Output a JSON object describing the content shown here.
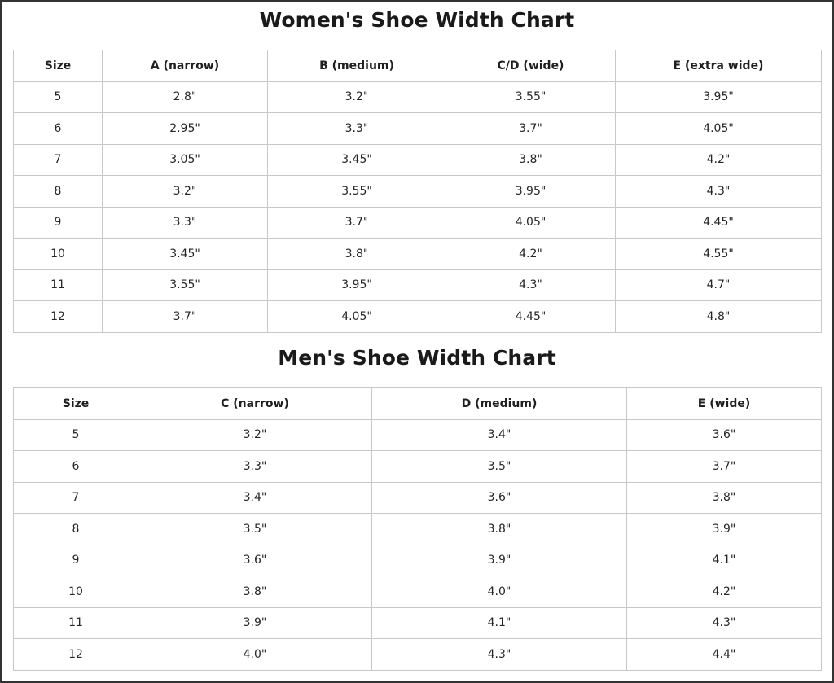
{
  "women": {
    "title": "Women's Shoe Width Chart",
    "headers": [
      "Size",
      "A (narrow)",
      "B (medium)",
      "C/D (wide)",
      "E (extra wide)"
    ],
    "rows": [
      [
        "5",
        "2.8\"",
        "3.2\"",
        "3.55\"",
        "3.95\""
      ],
      [
        "6",
        "2.95\"",
        "3.3\"",
        "3.7\"",
        "4.05\""
      ],
      [
        "7",
        "3.05\"",
        "3.45\"",
        "3.8\"",
        "4.2\""
      ],
      [
        "8",
        "3.2\"",
        "3.55\"",
        "3.95\"",
        "4.3\""
      ],
      [
        "9",
        "3.3\"",
        "3.7\"",
        "4.05\"",
        "4.45\""
      ],
      [
        "10",
        "3.45\"",
        "3.8\"",
        "4.2\"",
        "4.55\""
      ],
      [
        "11",
        "3.55\"",
        "3.95\"",
        "4.3\"",
        "4.7\""
      ],
      [
        "12",
        "3.7\"",
        "4.05\"",
        "4.45\"",
        "4.8\""
      ]
    ]
  },
  "men": {
    "title": "Men's Shoe Width Chart",
    "headers": [
      "Size",
      "C (narrow)",
      "D (medium)",
      "E (wide)"
    ],
    "rows": [
      [
        "5",
        "3.2\"",
        "3.4\"",
        "3.6\""
      ],
      [
        "6",
        "3.3\"",
        "3.5\"",
        "3.7\""
      ],
      [
        "7",
        "3.4\"",
        "3.6\"",
        "3.8\""
      ],
      [
        "8",
        "3.5\"",
        "3.8\"",
        "3.9\""
      ],
      [
        "9",
        "3.6\"",
        "3.9\"",
        "4.1\""
      ],
      [
        "10",
        "3.8\"",
        "4.0\"",
        "4.2\""
      ],
      [
        "11",
        "3.9\"",
        "4.1\"",
        "4.3\""
      ],
      [
        "12",
        "4.0\"",
        "4.3\"",
        "4.4\""
      ]
    ]
  }
}
